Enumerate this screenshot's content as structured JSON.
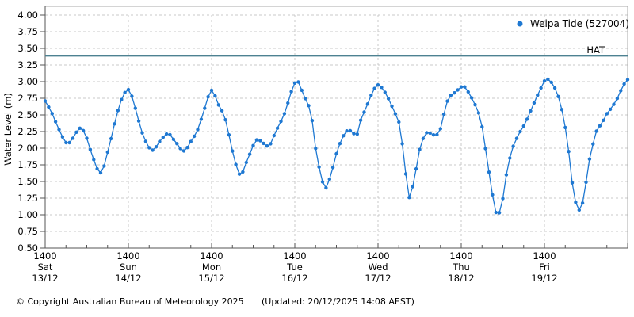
{
  "chart_data": {
    "type": "line",
    "title": "",
    "ylabel": "Water Level (m)",
    "xlabel": "",
    "ylim": [
      0.5,
      4.0
    ],
    "ytick_step": 0.25,
    "y_tick_labels": [
      "0.50",
      "0.75",
      "1.00",
      "1.25",
      "1.50",
      "1.75",
      "2.00",
      "2.25",
      "2.50",
      "2.75",
      "3.00",
      "3.25",
      "3.50",
      "3.75",
      "4.00"
    ],
    "x_span_hours": 168,
    "x_minor_tick_hours": 6,
    "x_major_tick_hours": 24,
    "x_ticks": [
      {
        "t": 0,
        "time": "1400",
        "day": "Sat",
        "date": "13/12"
      },
      {
        "t": 24,
        "time": "1400",
        "day": "Sun",
        "date": "14/12"
      },
      {
        "t": 48,
        "time": "1400",
        "day": "Mon",
        "date": "15/12"
      },
      {
        "t": 72,
        "time": "1400",
        "day": "Tue",
        "date": "16/12"
      },
      {
        "t": 96,
        "time": "1400",
        "day": "Wed",
        "date": "17/12"
      },
      {
        "t": 120,
        "time": "1400",
        "day": "Thu",
        "date": "18/12"
      },
      {
        "t": 144,
        "time": "1400",
        "day": "Fri",
        "date": "19/12"
      }
    ],
    "grid": true,
    "legend_position": "top-right",
    "hat_line": {
      "label": "HAT",
      "value": 3.39
    },
    "series": [
      {
        "name": "Weipa Tide (527004)",
        "units": "m",
        "t_units": "hours since Sat 13/12 14:00",
        "sample_step_hours": 1,
        "keypoints": [
          [
            0,
            2.71
          ],
          [
            2,
            2.52
          ],
          [
            4,
            2.28
          ],
          [
            6.5,
            2.07
          ],
          [
            8,
            2.15
          ],
          [
            10,
            2.3
          ],
          [
            11.5,
            2.22
          ],
          [
            13,
            1.98
          ],
          [
            16,
            1.63
          ],
          [
            18.3,
            2.0
          ],
          [
            20.6,
            2.49
          ],
          [
            22,
            2.73
          ],
          [
            24,
            2.88
          ],
          [
            26,
            2.6
          ],
          [
            28,
            2.23
          ],
          [
            31,
            1.97
          ],
          [
            33,
            2.1
          ],
          [
            35.4,
            2.22
          ],
          [
            37.5,
            2.1
          ],
          [
            40,
            1.96
          ],
          [
            42,
            2.1
          ],
          [
            44,
            2.28
          ],
          [
            46,
            2.6
          ],
          [
            48,
            2.87
          ],
          [
            50,
            2.65
          ],
          [
            51.7,
            2.48
          ],
          [
            53,
            2.2
          ],
          [
            54.5,
            1.85
          ],
          [
            56.3,
            1.6
          ],
          [
            58.5,
            1.85
          ],
          [
            61.3,
            2.13
          ],
          [
            62.8,
            2.08
          ],
          [
            64.3,
            2.03
          ],
          [
            66.5,
            2.25
          ],
          [
            69.3,
            2.56
          ],
          [
            71,
            2.85
          ],
          [
            72.6,
            3.01
          ],
          [
            74.5,
            2.8
          ],
          [
            76.8,
            2.48
          ],
          [
            77.9,
            2.03
          ],
          [
            79.3,
            1.65
          ],
          [
            80.8,
            1.4
          ],
          [
            82.5,
            1.62
          ],
          [
            84.5,
            2.0
          ],
          [
            87.5,
            2.27
          ],
          [
            89.8,
            2.2
          ],
          [
            91,
            2.42
          ],
          [
            92.5,
            2.6
          ],
          [
            94.5,
            2.85
          ],
          [
            96,
            2.95
          ],
          [
            97.5,
            2.88
          ],
          [
            100.6,
            2.56
          ],
          [
            102.4,
            2.3
          ],
          [
            103.7,
            1.75
          ],
          [
            105,
            1.26
          ],
          [
            106.5,
            1.55
          ],
          [
            108.1,
            2.0
          ],
          [
            110.4,
            2.24
          ],
          [
            112,
            2.2
          ],
          [
            113.4,
            2.21
          ],
          [
            114.7,
            2.45
          ],
          [
            116.1,
            2.72
          ],
          [
            118.5,
            2.85
          ],
          [
            120.6,
            2.93
          ],
          [
            122.5,
            2.8
          ],
          [
            124.1,
            2.64
          ],
          [
            125.7,
            2.4
          ],
          [
            128,
            1.64
          ],
          [
            129,
            1.3
          ],
          [
            130.3,
            1.01
          ],
          [
            131.5,
            1.1
          ],
          [
            133,
            1.6
          ],
          [
            134.5,
            1.95
          ],
          [
            136.7,
            2.22
          ],
          [
            138.5,
            2.38
          ],
          [
            140.5,
            2.62
          ],
          [
            142.5,
            2.85
          ],
          [
            144.7,
            3.04
          ],
          [
            146.5,
            2.95
          ],
          [
            148.1,
            2.76
          ],
          [
            149.7,
            2.4
          ],
          [
            151,
            1.95
          ],
          [
            152,
            1.48
          ],
          [
            152.7,
            1.25
          ],
          [
            154.1,
            1.07
          ],
          [
            155.5,
            1.3
          ],
          [
            156.5,
            1.69
          ],
          [
            157.5,
            1.96
          ],
          [
            158.3,
            2.12
          ],
          [
            159.3,
            2.3
          ],
          [
            160.5,
            2.36
          ],
          [
            161.5,
            2.48
          ],
          [
            162.5,
            2.55
          ],
          [
            163.5,
            2.62
          ],
          [
            164.5,
            2.7
          ],
          [
            165.5,
            2.8
          ],
          [
            166.3,
            2.9
          ],
          [
            167.2,
            2.98
          ],
          [
            168,
            3.03
          ]
        ]
      }
    ]
  },
  "legend": {
    "label": "Weipa Tide (527004)",
    "marker": "dot-icon"
  },
  "footer": {
    "copyright": "© Copyright Australian Bureau of Meteorology 2025",
    "updated": "(Updated: 20/12/2025 14:08 AEST)"
  },
  "colors": {
    "series": "#1e78d2",
    "hat": "#4d8191",
    "grid": "#c8c8c8",
    "axis": "#555555",
    "frame": "#a8a8a8",
    "text": "#000000"
  }
}
